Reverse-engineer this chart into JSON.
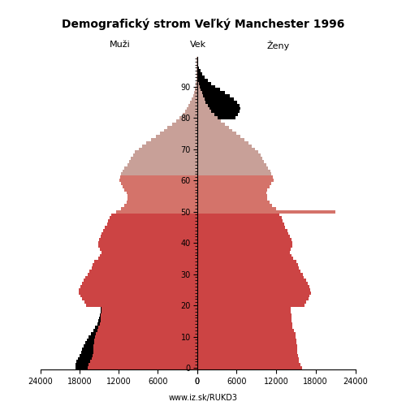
{
  "title": "Demografický strom Veľký Manchester 1996",
  "subtitle": "www.iz.sk/RUKD3",
  "label_males": "Muži",
  "label_females": "Ženy",
  "label_age": "Vek",
  "xlim": 24000,
  "yticks": [
    0,
    10,
    20,
    30,
    40,
    50,
    60,
    70,
    80,
    90
  ],
  "color_dark": "#cc4444",
  "color_mid": "#d4736a",
  "color_light": "#c8a098",
  "color_black": "#000000",
  "background": "#ffffff",
  "males": [
    16800,
    16600,
    16400,
    16200,
    16000,
    15900,
    15900,
    15900,
    15800,
    15800,
    15700,
    15500,
    15300,
    15100,
    14900,
    14800,
    14800,
    14800,
    14700,
    14700,
    17000,
    17300,
    17600,
    17900,
    18100,
    18100,
    17900,
    17700,
    17400,
    17100,
    16800,
    16500,
    16200,
    16000,
    15800,
    15200,
    14900,
    14700,
    14900,
    15100,
    15100,
    15000,
    14800,
    14600,
    14400,
    14100,
    13800,
    13600,
    13400,
    13100,
    12400,
    11700,
    11100,
    10800,
    10700,
    10600,
    10800,
    11100,
    11400,
    11700,
    11900,
    11800,
    11600,
    11400,
    11100,
    10700,
    10400,
    10100,
    9800,
    9500,
    8900,
    8400,
    7800,
    7100,
    6300,
    5700,
    5100,
    4500,
    3800,
    3200,
    2700,
    2200,
    1850,
    1550,
    1250,
    1000,
    800,
    620,
    460,
    330,
    230,
    155,
    100,
    62,
    36,
    18,
    9,
    4,
    2,
    1
  ],
  "females": [
    15900,
    15700,
    15500,
    15400,
    15300,
    15200,
    15200,
    15200,
    15100,
    15100,
    15000,
    14900,
    14700,
    14500,
    14400,
    14300,
    14300,
    14300,
    14200,
    14200,
    16300,
    16600,
    16900,
    17100,
    17300,
    17200,
    17000,
    16800,
    16500,
    16200,
    16000,
    15700,
    15500,
    15300,
    15100,
    14600,
    14300,
    14100,
    14200,
    14400,
    14400,
    14300,
    14100,
    13900,
    13700,
    13400,
    13200,
    13000,
    12800,
    12500,
    21000,
    12000,
    11400,
    11000,
    10700,
    10600,
    10500,
    10700,
    11000,
    11300,
    11600,
    11500,
    11300,
    11100,
    10800,
    10500,
    10200,
    9900,
    9600,
    9300,
    8800,
    8300,
    7800,
    7200,
    6600,
    6000,
    5400,
    4800,
    4200,
    3600,
    3100,
    2600,
    2200,
    1900,
    1600,
    1350,
    1150,
    950,
    750,
    580,
    430,
    300,
    200,
    130,
    78,
    43,
    22,
    10,
    4,
    1
  ],
  "females_black": [
    0,
    0,
    0,
    0,
    0,
    0,
    0,
    0,
    0,
    0,
    0,
    0,
    0,
    0,
    0,
    0,
    0,
    0,
    0,
    0,
    0,
    0,
    0,
    0,
    0,
    0,
    0,
    0,
    0,
    0,
    0,
    0,
    0,
    0,
    0,
    0,
    0,
    0,
    0,
    0,
    0,
    0,
    0,
    0,
    0,
    0,
    0,
    0,
    0,
    0,
    0,
    0,
    0,
    0,
    0,
    0,
    0,
    0,
    0,
    0,
    0,
    0,
    0,
    0,
    0,
    0,
    0,
    0,
    0,
    0,
    0,
    0,
    0,
    0,
    0,
    0,
    0,
    0,
    0,
    0,
    2800,
    3600,
    4300,
    4700,
    4800,
    4700,
    4400,
    4000,
    3500,
    2900,
    2300,
    1800,
    1400,
    1050,
    750,
    500,
    320,
    200,
    110,
    55
  ],
  "males_black": [
    1800,
    2000,
    2100,
    2100,
    2000,
    1900,
    1700,
    1500,
    1300,
    1100,
    900,
    750,
    600,
    500,
    400,
    300,
    220,
    160,
    110,
    70,
    0,
    0,
    0,
    0,
    0,
    0,
    0,
    0,
    0,
    0,
    0,
    0,
    0,
    0,
    0,
    0,
    0,
    0,
    0,
    0,
    0,
    0,
    0,
    0,
    0,
    0,
    0,
    0,
    0,
    0,
    0,
    0,
    0,
    0,
    0,
    0,
    0,
    0,
    0,
    0,
    0,
    0,
    0,
    0,
    0,
    0,
    0,
    0,
    0,
    0,
    0,
    0,
    0,
    0,
    0,
    0,
    0,
    0,
    0,
    0,
    0,
    0,
    0,
    0,
    0,
    0,
    0,
    0,
    0,
    0,
    0,
    0,
    0,
    0,
    0,
    0,
    0,
    0,
    0,
    0
  ]
}
